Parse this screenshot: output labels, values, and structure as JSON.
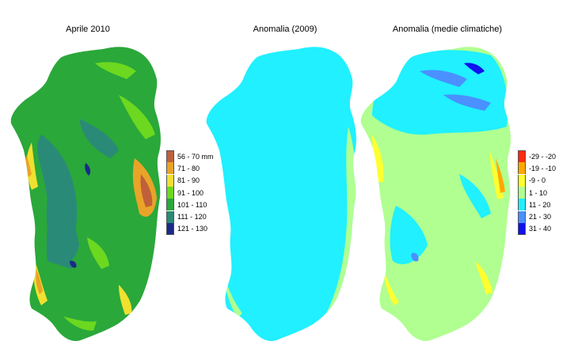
{
  "maps": [
    {
      "title": "Aprile 2010",
      "legend": [
        {
          "label": "56 - 70 mm",
          "color": "#c0603a"
        },
        {
          "label": "71 - 80",
          "color": "#e8a428"
        },
        {
          "label": "81 - 90",
          "color": "#f0e030"
        },
        {
          "label": "91 - 100",
          "color": "#6cd820"
        },
        {
          "label": "101 - 110",
          "color": "#2aa83a"
        },
        {
          "label": "111 - 120",
          "color": "#2a8a78"
        },
        {
          "label": "121 - 130",
          "color": "#1a2a88"
        }
      ]
    },
    {
      "title": "Anomalia (2009)",
      "legend": []
    },
    {
      "title": "Anomalia (medie climatiche)",
      "legend": [
        {
          "label": "-29 - -20",
          "color": "#ff2a10"
        },
        {
          "label": "-19 - -10",
          "color": "#ffa800"
        },
        {
          "label": "-9 - 0",
          "color": "#ffff30"
        },
        {
          "label": "1 - 10",
          "color": "#b0ff90"
        },
        {
          "label": "11 - 20",
          "color": "#20f0ff"
        },
        {
          "label": "21 - 30",
          "color": "#4a90ff"
        },
        {
          "label": "31 - 40",
          "color": "#1010f0"
        }
      ]
    }
  ]
}
